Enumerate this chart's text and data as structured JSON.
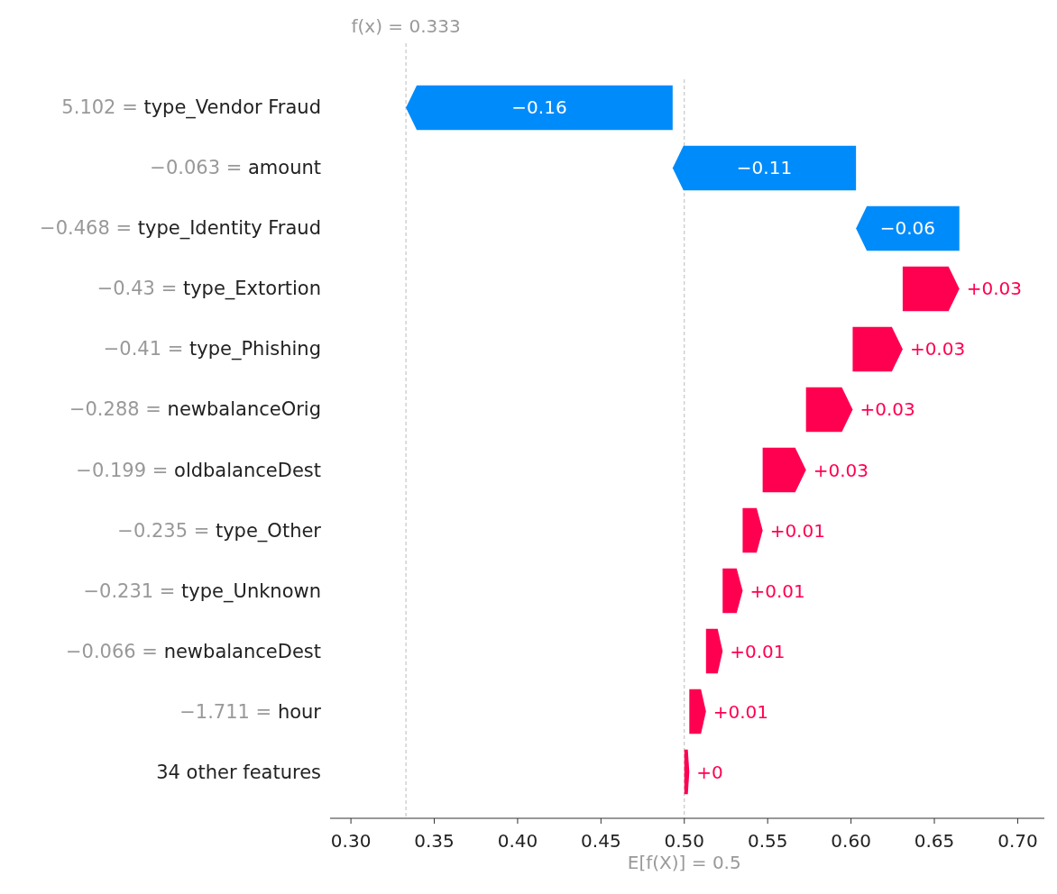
{
  "chart_data": {
    "type": "bar",
    "orientation": "horizontal",
    "categories": [
      "5.102 = type_Vendor Fraud",
      "−0.063 = amount",
      "−0.468 = type_Identity Fraud",
      "−0.43 = type_Extortion",
      "−0.41 = type_Phishing",
      "−0.288 = newbalanceOrig",
      "−0.199 = oldbalanceDest",
      "−0.235 = type_Other",
      "−0.231 = type_Unknown",
      "−0.066 = newbalanceDest",
      "−1.711 = hour",
      "34 other features"
    ],
    "values": [
      -0.16,
      -0.11,
      -0.062,
      0.034,
      0.03,
      0.028,
      0.026,
      0.012,
      0.012,
      0.01,
      0.01,
      0.003
    ],
    "base": [
      0.493,
      0.603,
      0.665,
      0.631,
      0.601,
      0.573,
      0.547,
      0.535,
      0.523,
      0.513,
      0.503,
      0.5
    ],
    "colors": [
      "#008bfb",
      "#008bfb",
      "#008bfb",
      "#ff0051",
      "#ff0051",
      "#ff0051",
      "#ff0051",
      "#ff0051",
      "#ff0051",
      "#ff0051",
      "#ff0051",
      "#ff0051"
    ],
    "value_labels": [
      "−0.16",
      "−0.11",
      "−0.06",
      "+0.03",
      "+0.03",
      "+0.03",
      "+0.03",
      "+0.01",
      "+0.01",
      "+0.01",
      "+0.01",
      "+0"
    ],
    "xlim": [
      0.2875,
      0.716
    ],
    "xticks": [
      {
        "value": 0.3,
        "label": "0.30"
      },
      {
        "value": 0.35,
        "label": "0.35"
      },
      {
        "value": 0.4,
        "label": "0.40"
      },
      {
        "value": 0.45,
        "label": "0.45"
      },
      {
        "value": 0.5,
        "label": "0.50"
      },
      {
        "value": 0.55,
        "label": "0.55"
      },
      {
        "value": 0.6,
        "label": "0.60"
      },
      {
        "value": 0.65,
        "label": "0.65"
      },
      {
        "value": 0.7,
        "label": "0.70"
      }
    ],
    "ref_lines": [
      {
        "axis": "x",
        "value": 0.333,
        "label": "f(x) = 0.333",
        "color": "#bbbbbb",
        "line_style": "dashed"
      },
      {
        "axis": "x",
        "value": 0.5,
        "label": "E[f(X)] = 0.5",
        "color": "#bbbbbb",
        "line_style": "dashed"
      }
    ]
  }
}
